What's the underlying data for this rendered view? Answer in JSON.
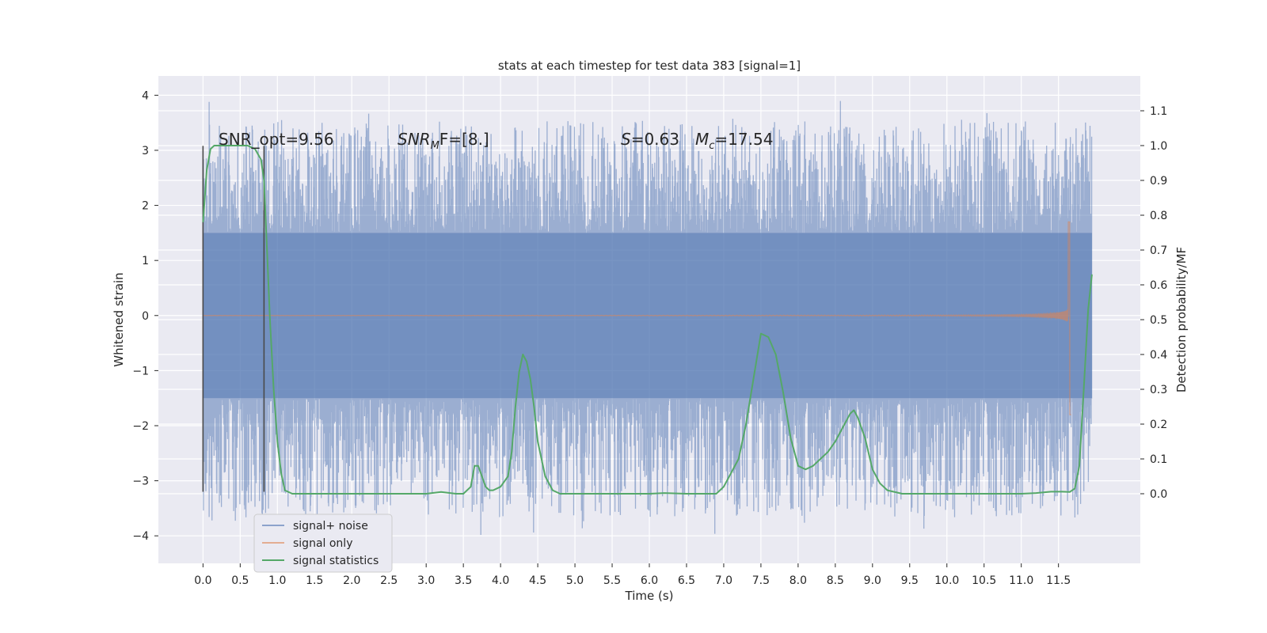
{
  "chart_data": {
    "type": "line",
    "title": "stats at each timestep for test data 383 [signal=1]",
    "xlabel": "Time (s)",
    "ylabel_left": "Whitened strain",
    "ylabel_right": "Detection probability/MF",
    "xlim": [
      -0.6,
      12.6
    ],
    "ylim_left": [
      -4.5,
      4.35
    ],
    "ylim_right": [
      -0.2,
      1.2
    ],
    "x_ticks": [
      "0.0",
      "0.5",
      "1.0",
      "1.5",
      "2.0",
      "2.5",
      "3.0",
      "3.5",
      "4.0",
      "4.5",
      "5.0",
      "5.5",
      "6.0",
      "6.5",
      "7.0",
      "7.5",
      "8.0",
      "8.5",
      "9.0",
      "9.5",
      "10.0",
      "10.5",
      "11.0",
      "11.5"
    ],
    "y_ticks_left": [
      "−4",
      "−3",
      "−2",
      "−1",
      "0",
      "1",
      "2",
      "3",
      "4"
    ],
    "y_ticks_right": [
      "0.0",
      "0.1",
      "0.2",
      "0.3",
      "0.4",
      "0.5",
      "0.6",
      "0.7",
      "0.8",
      "0.9",
      "1.0",
      "1.1"
    ],
    "grid": true,
    "legend_placement": "lower-left",
    "annotations": {
      "snr_opt": "SNR_opt=9.56",
      "snr_mf_main": "SNR",
      "snr_mf_sub": "M",
      "snr_mf_rest": "F=[8.]",
      "s_main": "S",
      "s_rest": "=0.63",
      "mc_main": "M",
      "mc_sub": "c",
      "mc_rest": "=17.54"
    },
    "vertical_lines_x": [
      0.0,
      0.82
    ],
    "series": [
      {
        "name": "signal+ noise",
        "color": "#4c72b0",
        "axis": "left",
        "envelope": {
          "x_start": 0.0,
          "x_end": 11.95,
          "core_abs": 1.5,
          "peak_max": 3.9,
          "peak_min": -4.05
        }
      },
      {
        "name": "signal only",
        "color": "#dd8452",
        "axis": "left",
        "chirp": {
          "x_start": 0.0,
          "x_merge": 11.65,
          "peak_amp": 1.7,
          "min_amp": -1.8
        }
      },
      {
        "name": "signal statistics",
        "color": "#55a868",
        "axis": "right",
        "x": [
          0.0,
          0.05,
          0.1,
          0.15,
          0.2,
          0.3,
          0.4,
          0.5,
          0.6,
          0.7,
          0.78,
          0.82,
          0.86,
          0.9,
          0.95,
          1.0,
          1.05,
          1.1,
          1.2,
          1.5,
          2.0,
          2.5,
          3.0,
          3.2,
          3.4,
          3.5,
          3.6,
          3.65,
          3.7,
          3.75,
          3.8,
          3.85,
          3.9,
          4.0,
          4.1,
          4.15,
          4.2,
          4.25,
          4.3,
          4.35,
          4.4,
          4.45,
          4.5,
          4.6,
          4.7,
          4.8,
          5.0,
          5.5,
          6.0,
          6.2,
          6.5,
          6.9,
          7.0,
          7.1,
          7.2,
          7.3,
          7.4,
          7.5,
          7.6,
          7.7,
          7.8,
          7.9,
          8.0,
          8.1,
          8.2,
          8.3,
          8.4,
          8.5,
          8.6,
          8.7,
          8.75,
          8.8,
          8.9,
          9.0,
          9.1,
          9.2,
          9.4,
          10.0,
          10.5,
          11.0,
          11.2,
          11.4,
          11.55,
          11.65,
          11.72,
          11.78,
          11.84,
          11.9,
          11.95
        ],
        "values": [
          0.78,
          0.93,
          0.99,
          1.0,
          1.0,
          1.0,
          1.0,
          1.0,
          1.0,
          0.99,
          0.96,
          0.9,
          0.7,
          0.5,
          0.3,
          0.15,
          0.06,
          0.01,
          0.0,
          0.0,
          0.0,
          0.0,
          0.0,
          0.005,
          0.0,
          0.0,
          0.02,
          0.08,
          0.08,
          0.05,
          0.02,
          0.01,
          0.01,
          0.02,
          0.05,
          0.12,
          0.25,
          0.35,
          0.4,
          0.38,
          0.33,
          0.25,
          0.15,
          0.05,
          0.01,
          0.0,
          0.0,
          0.0,
          0.0,
          0.002,
          0.0,
          0.0,
          0.02,
          0.06,
          0.1,
          0.2,
          0.33,
          0.46,
          0.45,
          0.4,
          0.29,
          0.16,
          0.08,
          0.07,
          0.08,
          0.1,
          0.12,
          0.15,
          0.19,
          0.23,
          0.24,
          0.22,
          0.16,
          0.07,
          0.03,
          0.01,
          0.0,
          0.0,
          0.0,
          0.0,
          0.002,
          0.006,
          0.006,
          0.005,
          0.015,
          0.08,
          0.3,
          0.53,
          0.63
        ]
      }
    ]
  }
}
